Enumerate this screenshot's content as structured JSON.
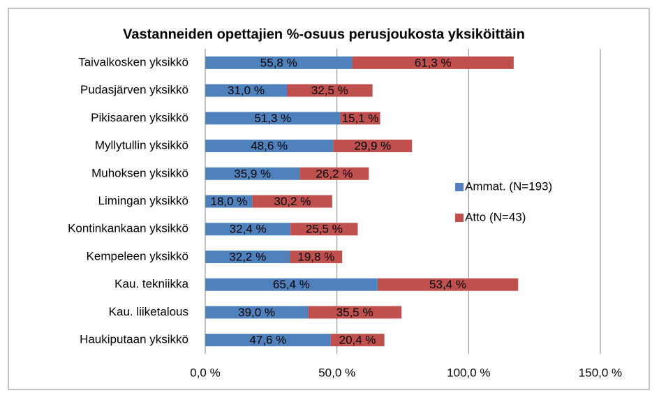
{
  "chart_data": {
    "type": "stacked-bar-horizontal",
    "title": "Vastanneiden opettajien %-osuus perusjoukosta yksiköittäin",
    "categories": [
      "Taivalkosken yksikkö",
      "Pudasjärven yksikkö",
      "Pikisaaren yksikkö",
      "Myllytullin yksikkö",
      "Muhoksen yksikkö",
      "Limingan yksikkö",
      "Kontinkankaan yksikkö",
      "Kempeleen yksikkö",
      "Kau. tekniikka",
      "Kau. liiketalous",
      "Haukiputaan yksikkö"
    ],
    "series": [
      {
        "name": "Ammat. (N=193)",
        "color": "#4f81bd",
        "values": [
          55.8,
          31.0,
          51.3,
          48.6,
          35.9,
          18.0,
          32.4,
          32.2,
          65.4,
          39.0,
          47.6
        ],
        "value_labels": [
          "55,8 %",
          "31,0 %",
          "51,3 %",
          "48,6 %",
          "35,9 %",
          "18,0 %",
          "32,4 %",
          "32,2 %",
          "65,4 %",
          "39,0 %",
          "47,6 %"
        ]
      },
      {
        "name": "Atto (N=43)",
        "color": "#c0504d",
        "values": [
          61.3,
          32.5,
          15.1,
          29.9,
          26.2,
          30.2,
          25.5,
          19.8,
          53.4,
          35.5,
          20.4
        ],
        "value_labels": [
          "61,3 %",
          "32,5 %",
          "15,1 %",
          "29,9 %",
          "26,2 %",
          "30,2 %",
          "25,5 %",
          "19,8 %",
          "53,4 %",
          "35,5 %",
          "20,4 %"
        ]
      }
    ],
    "xlim": [
      0,
      150
    ],
    "xticks": [
      {
        "value": 0,
        "label": "0,0 %"
      },
      {
        "value": 50,
        "label": "50,0 %"
      },
      {
        "value": 100,
        "label": "100,0 %"
      },
      {
        "value": 150,
        "label": "150,0 %"
      }
    ],
    "grid": true,
    "legend": "right"
  }
}
